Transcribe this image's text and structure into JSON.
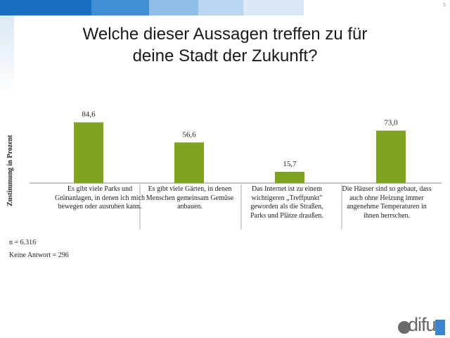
{
  "slide": {
    "title_line1": "Welche dieser Aussagen treffen zu für",
    "title_line2": "deine Stadt der Zukunft?",
    "page_number": "5",
    "sample_size": "n = 6.316",
    "no_answer": "Keine Antwort = 296",
    "logo_text": "difu"
  },
  "colors": {
    "bar": "#7fa420",
    "band": [
      "#1a6fc4",
      "#3f8fd2",
      "#8ebde6",
      "#b8d6ef",
      "#dbe9f6"
    ]
  },
  "chart_data": {
    "type": "bar",
    "title": "Welche dieser Aussagen treffen zu für deine Stadt der Zukunft?",
    "xlabel": "",
    "ylabel": "Zustimmung in Prozent",
    "ylim": [
      0,
      100
    ],
    "categories": [
      "Es gibt viele Parks und Grünanlagen, in denen ich mich bewegen oder ausruhen kann.",
      "Es gibt viele Gärten, in denen Menschen gemeinsam Gemüse anbauen.",
      "Das Internet ist zu einem wichtigeren „Treffpunkt\" geworden als die Straßen, Parks und Plätze draußen.",
      "Die Häuser sind so gebaut, dass auch ohne Heizung immer angenehme Temperaturen in ihnen herrschen."
    ],
    "values": [
      84.6,
      56.6,
      15.7,
      73.0
    ],
    "value_labels": [
      "84,6",
      "56,6",
      "15,7",
      "73,0"
    ]
  }
}
